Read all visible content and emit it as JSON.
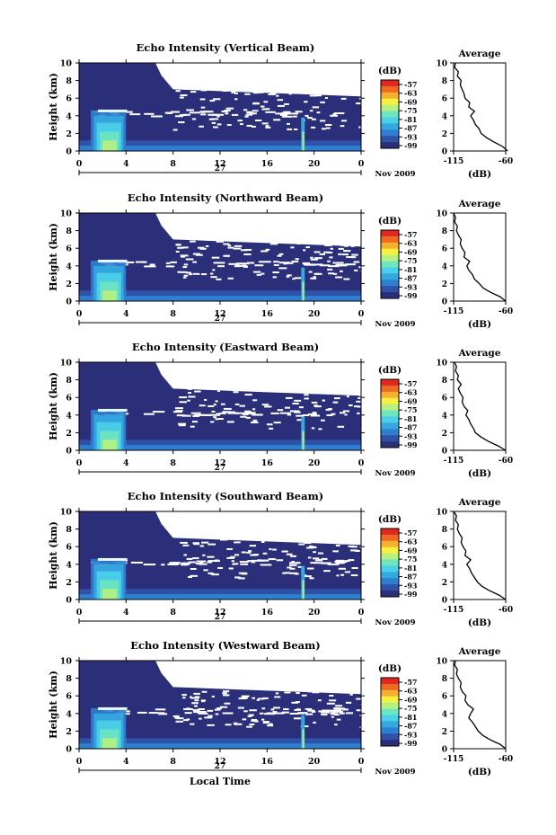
{
  "chart_data": [
    {
      "type": "heatmap",
      "title": "Echo Intensity (Vertical Beam)",
      "ylabel": "Height (km)",
      "ylim": [
        0,
        10
      ],
      "yticks": [
        "0",
        "2",
        "4",
        "6",
        "8",
        "10"
      ],
      "xlim": [
        0,
        24
      ],
      "xticks": [
        "0",
        "4",
        "8",
        "12",
        "16",
        "20",
        "0"
      ],
      "day_label": "27",
      "date_label": "Nov 2009",
      "colorbar": {
        "unit": "(dB)",
        "ticks": [
          "-57",
          "-63",
          "-69",
          "-75",
          "-81",
          "-87",
          "-93",
          "-99"
        ]
      },
      "average": {
        "title": "Average",
        "xlabel": "(dB)",
        "xticks": [
          "-115",
          "-60"
        ],
        "xlim": [
          -115,
          -60
        ],
        "ylim": [
          0,
          10
        ],
        "yticks": [
          "0",
          "2",
          "4",
          "6",
          "8",
          "10"
        ],
        "profile": [
          [
            -58,
            0
          ],
          [
            -63,
            0.5
          ],
          [
            -72,
            1
          ],
          [
            -80,
            1.5
          ],
          [
            -86,
            2
          ],
          [
            -88,
            2.5
          ],
          [
            -92,
            3
          ],
          [
            -94,
            3.5
          ],
          [
            -97,
            4
          ],
          [
            -93,
            4.5
          ],
          [
            -99,
            5
          ],
          [
            -98,
            5.5
          ],
          [
            -103,
            6
          ],
          [
            -104,
            6.5
          ],
          [
            -106,
            7
          ],
          [
            -108,
            7.5
          ],
          [
            -107,
            8
          ],
          [
            -111,
            8.5
          ],
          [
            -110,
            9
          ],
          [
            -114,
            9.5
          ],
          [
            -113,
            10
          ]
        ]
      }
    },
    {
      "type": "heatmap",
      "title": "Echo Intensity (Northward Beam)",
      "ylabel": "Height (km)",
      "ylim": [
        0,
        10
      ],
      "yticks": [
        "0",
        "2",
        "4",
        "6",
        "8",
        "10"
      ],
      "xlim": [
        0,
        24
      ],
      "xticks": [
        "0",
        "4",
        "8",
        "12",
        "16",
        "20",
        "0"
      ],
      "day_label": "27",
      "date_label": "Nov 2009",
      "colorbar": {
        "unit": "(dB)",
        "ticks": [
          "-57",
          "-63",
          "-69",
          "-75",
          "-81",
          "-87",
          "-93",
          "-99"
        ]
      },
      "average": {
        "title": "Average",
        "xlabel": "(dB)",
        "xticks": [
          "-115",
          "-60"
        ],
        "xlim": [
          -115,
          -60
        ],
        "ylim": [
          0,
          10
        ],
        "yticks": [
          "0",
          "2",
          "4",
          "6",
          "8",
          "10"
        ],
        "profile": [
          [
            -60,
            0
          ],
          [
            -66,
            0.5
          ],
          [
            -76,
            1
          ],
          [
            -84,
            1.5
          ],
          [
            -88,
            2
          ],
          [
            -93,
            2.5
          ],
          [
            -95,
            3
          ],
          [
            -99,
            3.5
          ],
          [
            -101,
            4
          ],
          [
            -98,
            4.5
          ],
          [
            -104,
            5
          ],
          [
            -103,
            5.5
          ],
          [
            -106,
            6
          ],
          [
            -108,
            6.5
          ],
          [
            -107,
            7
          ],
          [
            -110,
            7.5
          ],
          [
            -112,
            8
          ],
          [
            -111,
            8.5
          ],
          [
            -114,
            9
          ],
          [
            -113,
            9.5
          ],
          [
            -115,
            10
          ]
        ]
      }
    },
    {
      "type": "heatmap",
      "title": "Echo Intensity (Eastward Beam)",
      "ylabel": "Height (km)",
      "ylim": [
        0,
        10
      ],
      "yticks": [
        "0",
        "2",
        "4",
        "6",
        "8",
        "10"
      ],
      "xlim": [
        0,
        24
      ],
      "xticks": [
        "0",
        "4",
        "8",
        "12",
        "16",
        "20",
        "0"
      ],
      "day_label": "27",
      "date_label": "Nov 2009",
      "colorbar": {
        "unit": "(dB)",
        "ticks": [
          "-57",
          "-63",
          "-69",
          "-75",
          "-81",
          "-87",
          "-93",
          "-99"
        ]
      },
      "average": {
        "title": "Average",
        "xlabel": "(dB)",
        "xticks": [
          "-115",
          "-60"
        ],
        "xlim": [
          -115,
          -60
        ],
        "ylim": [
          0,
          10
        ],
        "yticks": [
          "0",
          "2",
          "4",
          "6",
          "8",
          "10"
        ],
        "profile": [
          [
            -60,
            0
          ],
          [
            -68,
            0.5
          ],
          [
            -78,
            1
          ],
          [
            -86,
            1.5
          ],
          [
            -92,
            2
          ],
          [
            -94,
            2.5
          ],
          [
            -97,
            3
          ],
          [
            -99,
            3.5
          ],
          [
            -102,
            4
          ],
          [
            -100,
            4.5
          ],
          [
            -104,
            5
          ],
          [
            -106,
            5.5
          ],
          [
            -105,
            6
          ],
          [
            -108,
            6.5
          ],
          [
            -110,
            7
          ],
          [
            -107,
            7.5
          ],
          [
            -111,
            8
          ],
          [
            -110,
            8.5
          ],
          [
            -113,
            9
          ],
          [
            -112,
            9.5
          ],
          [
            -114,
            10
          ]
        ]
      }
    },
    {
      "type": "heatmap",
      "title": "Echo Intensity (Southward Beam)",
      "ylabel": "Height (km)",
      "ylim": [
        0,
        10
      ],
      "yticks": [
        "0",
        "2",
        "4",
        "6",
        "8",
        "10"
      ],
      "xlim": [
        0,
        24
      ],
      "xticks": [
        "0",
        "4",
        "8",
        "12",
        "16",
        "20",
        "0"
      ],
      "day_label": "27",
      "date_label": "Nov 2009",
      "colorbar": {
        "unit": "(dB)",
        "ticks": [
          "-57",
          "-63",
          "-69",
          "-75",
          "-81",
          "-87",
          "-93",
          "-99"
        ]
      },
      "average": {
        "title": "Average",
        "xlabel": "(dB)",
        "xticks": [
          "-115",
          "-60"
        ],
        "xlim": [
          -115,
          -60
        ],
        "ylim": [
          0,
          10
        ],
        "yticks": [
          "0",
          "2",
          "4",
          "6",
          "8",
          "10"
        ],
        "profile": [
          [
            -60,
            0
          ],
          [
            -67,
            0.5
          ],
          [
            -77,
            1
          ],
          [
            -85,
            1.5
          ],
          [
            -90,
            2
          ],
          [
            -93,
            2.5
          ],
          [
            -96,
            3
          ],
          [
            -98,
            3.5
          ],
          [
            -101,
            4
          ],
          [
            -97,
            4.5
          ],
          [
            -103,
            5
          ],
          [
            -102,
            5.5
          ],
          [
            -105,
            6
          ],
          [
            -107,
            6.5
          ],
          [
            -106,
            7
          ],
          [
            -109,
            7.5
          ],
          [
            -111,
            8
          ],
          [
            -110,
            8.5
          ],
          [
            -113,
            9
          ],
          [
            -112,
            9.5
          ],
          [
            -115,
            10
          ]
        ]
      }
    },
    {
      "type": "heatmap",
      "title": "Echo Intensity (Westward Beam)",
      "ylabel": "Height (km)",
      "ylim": [
        0,
        10
      ],
      "yticks": [
        "0",
        "2",
        "4",
        "6",
        "8",
        "10"
      ],
      "xlim": [
        0,
        24
      ],
      "xticks": [
        "0",
        "4",
        "8",
        "12",
        "16",
        "20",
        "0"
      ],
      "day_label": "27",
      "date_label": "Nov 2009",
      "xlabel": "Local Time",
      "colorbar": {
        "unit": "(dB)",
        "ticks": [
          "-57",
          "-63",
          "-69",
          "-75",
          "-81",
          "-87",
          "-93",
          "-99"
        ]
      },
      "average": {
        "title": "Average",
        "xlabel": "(dB)",
        "xticks": [
          "-115",
          "-60"
        ],
        "xlim": [
          -115,
          -60
        ],
        "ylim": [
          0,
          10
        ],
        "yticks": [
          "0",
          "2",
          "4",
          "6",
          "8",
          "10"
        ],
        "profile": [
          [
            -60,
            0
          ],
          [
            -66,
            0.5
          ],
          [
            -76,
            1
          ],
          [
            -84,
            1.5
          ],
          [
            -89,
            2
          ],
          [
            -92,
            2.5
          ],
          [
            -95,
            3
          ],
          [
            -99,
            3.5
          ],
          [
            -97,
            4
          ],
          [
            -94,
            4.5
          ],
          [
            -100,
            5
          ],
          [
            -103,
            5.5
          ],
          [
            -102,
            6
          ],
          [
            -106,
            6.5
          ],
          [
            -108,
            7
          ],
          [
            -107,
            7.5
          ],
          [
            -110,
            8
          ],
          [
            -112,
            8.5
          ],
          [
            -111,
            9
          ],
          [
            -114,
            9.5
          ],
          [
            -113,
            10
          ]
        ]
      }
    }
  ],
  "colors": {
    "background": "#2b2f7a",
    "colormap": [
      "#2b2f7a",
      "#2f52a8",
      "#2f7fd0",
      "#36a8e0",
      "#4ad0e8",
      "#6de6c0",
      "#b8f080",
      "#f6f040",
      "#f6b030",
      "#ee6a24",
      "#e02820"
    ]
  }
}
